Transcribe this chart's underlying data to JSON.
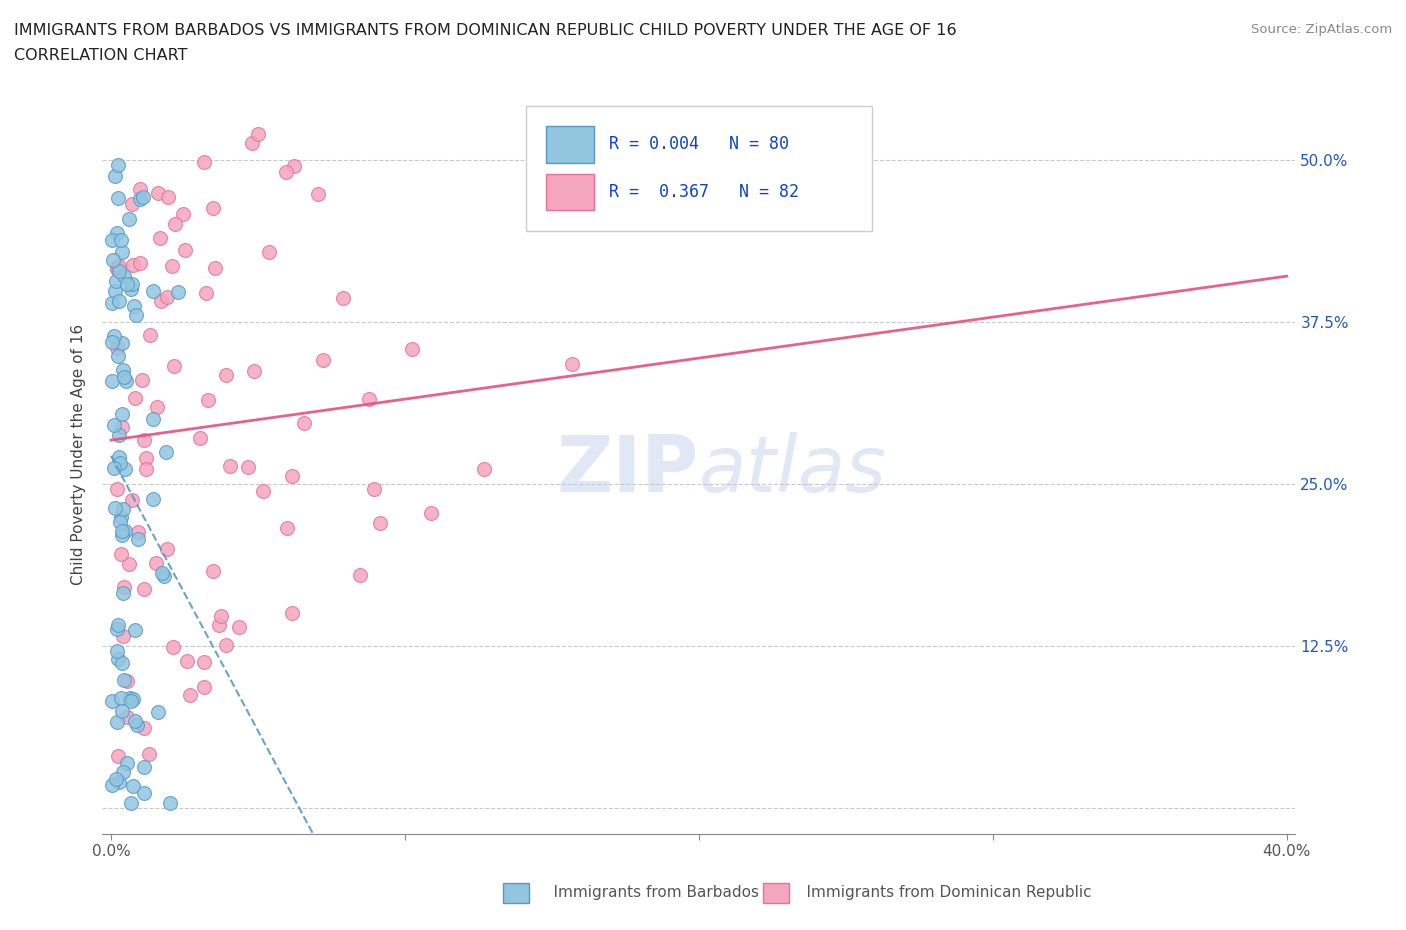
{
  "title": "IMMIGRANTS FROM BARBADOS VS IMMIGRANTS FROM DOMINICAN REPUBLIC CHILD POVERTY UNDER THE AGE OF 16",
  "subtitle": "CORRELATION CHART",
  "source": "Source: ZipAtlas.com",
  "xlabel_barbados": "Immigrants from Barbados",
  "xlabel_dr": "Immigrants from Dominican Republic",
  "ylabel": "Child Poverty Under the Age of 16",
  "R_barbados": 0.004,
  "N_barbados": 80,
  "R_dr": 0.367,
  "N_dr": 82,
  "color_barbados": "#92c5de",
  "color_dr": "#f4a6be",
  "color_barbados_line": "#5599cc",
  "color_dr_line": "#e8507a",
  "watermark": "ZIPatlas",
  "xlim": [
    0.0,
    0.4
  ],
  "ylim": [
    0.0,
    0.55
  ],
  "ytick_positions": [
    0.0,
    0.125,
    0.25,
    0.375,
    0.5
  ],
  "ytick_labels": [
    "",
    "12.5%",
    "25.0%",
    "37.5%",
    "50.0%"
  ],
  "xtick_positions": [
    0.0,
    0.1,
    0.2,
    0.3,
    0.4
  ],
  "xtick_labels_bottom": [
    "0.0%",
    "",
    "",
    "",
    "40.0%"
  ]
}
